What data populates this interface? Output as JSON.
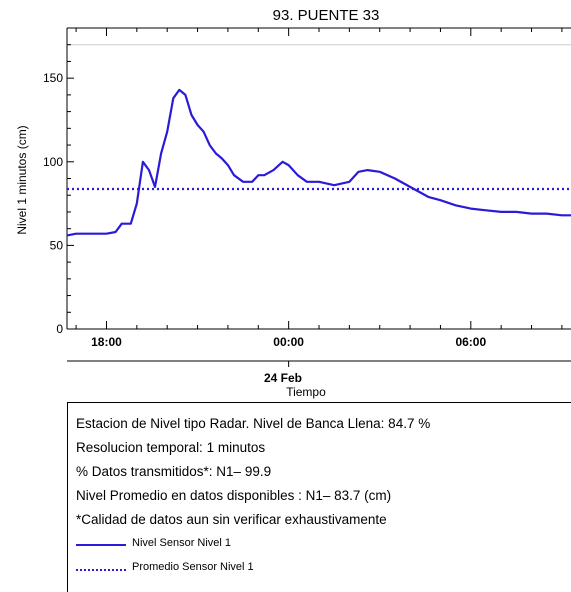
{
  "chart_data": {
    "type": "line",
    "title": "93. PUENTE 33",
    "ylabel": "Nivel 1 minutos (cm)",
    "xlabel": "Tiempo",
    "date_label": "24 Feb",
    "ylim": [
      0,
      180
    ],
    "reference_line_y": 170,
    "y_ticks": [
      0,
      50,
      100,
      150
    ],
    "x_ticks": [
      {
        "hour": 18,
        "label": "18:00"
      },
      {
        "hour": 24,
        "label": "00:00"
      },
      {
        "hour": 30,
        "label": "06:00"
      }
    ],
    "x_range_hours": [
      16.7,
      33.3
    ],
    "date_tick_hour": 24,
    "series": [
      {
        "name": "Nivel Sensor Nivel 1",
        "style": "solid",
        "color": "#2a1bd9",
        "x_hours": [
          16.7,
          17.0,
          17.5,
          18.0,
          18.3,
          18.5,
          18.8,
          19.0,
          19.2,
          19.4,
          19.6,
          19.8,
          20.0,
          20.2,
          20.4,
          20.6,
          20.8,
          21.0,
          21.2,
          21.4,
          21.6,
          21.8,
          22.0,
          22.2,
          22.5,
          22.8,
          23.0,
          23.2,
          23.5,
          23.8,
          24.0,
          24.3,
          24.6,
          25.0,
          25.5,
          26.0,
          26.3,
          26.6,
          27.0,
          27.5,
          28.0,
          28.3,
          28.6,
          29.0,
          29.5,
          30.0,
          30.5,
          31.0,
          31.5,
          32.0,
          32.5,
          33.0,
          33.3
        ],
        "y_values": [
          56,
          57,
          57,
          57,
          58,
          63,
          63,
          75,
          100,
          95,
          85,
          105,
          118,
          138,
          143,
          140,
          128,
          122,
          118,
          110,
          105,
          102,
          98,
          92,
          88,
          88,
          92,
          92,
          95,
          100,
          98,
          92,
          88,
          88,
          86,
          88,
          94,
          95,
          94,
          90,
          85,
          82,
          79,
          77,
          74,
          72,
          71,
          70,
          70,
          69,
          69,
          68,
          68
        ]
      },
      {
        "name": "Promedio Sensor Nivel 1",
        "style": "dotted",
        "color": "#2a1bd9",
        "x_hours": [
          16.7,
          33.3
        ],
        "y_values": [
          83.7,
          83.7
        ]
      }
    ],
    "legend_placement": "bottom-left inside info box"
  },
  "info": {
    "line1": "Estacion de Nivel tipo Radar. Nivel de Banca Llena: 84.7 %",
    "line2": "Resolucion temporal: 1 minutos",
    "line3": "% Datos transmitidos*: N1– 99.9",
    "line4": "Nivel Promedio en datos disponibles : N1– 83.7 (cm)",
    "line5": "*Calidad de datos aun sin verificar exhaustivamente",
    "legend1": "Nivel Sensor Nivel 1",
    "legend2": "Promedio Sensor Nivel 1"
  },
  "colors": {
    "series": "#2a1bd9",
    "reference_line": "#cccccc",
    "axis": "#000000"
  }
}
